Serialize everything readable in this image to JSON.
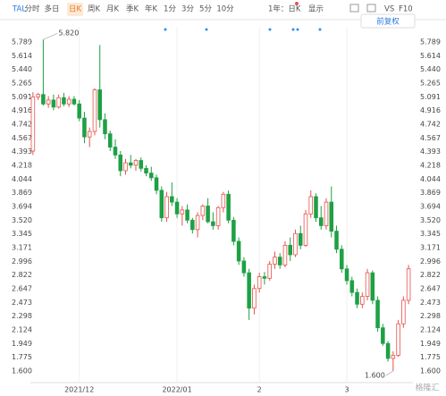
{
  "toolbar": {
    "symbol": "TAL",
    "tabs": [
      "分时",
      "多日",
      "日K",
      "周K",
      "月K",
      "季K",
      "年K",
      "1分",
      "3分",
      "5分",
      "10分"
    ],
    "range": "1年：日K",
    "display": "显示",
    "vs": "VS",
    "f10": "F10",
    "adjust": "前复权"
  },
  "watermark": "格隆汇",
  "chart_data": {
    "type": "candlestick",
    "categories": [
      null,
      null,
      null,
      null,
      null,
      null,
      null,
      null,
      null,
      "2021/12",
      null,
      null,
      null,
      null,
      null,
      null,
      null,
      null,
      null,
      null,
      null,
      null,
      null,
      null,
      null,
      null,
      null,
      null,
      "2022/01",
      null,
      null,
      null,
      null,
      null,
      null,
      null,
      null,
      null,
      null,
      null,
      null,
      null,
      null,
      null,
      "2",
      null,
      null,
      null,
      null,
      null,
      null,
      null,
      null,
      null,
      null,
      null,
      null,
      null,
      null,
      null,
      null,
      "3",
      null,
      null,
      null,
      null,
      null,
      null,
      null,
      null,
      null,
      null,
      null,
      null
    ],
    "open": [
      4.4,
      5.09,
      5.12,
      5.0,
      5.05,
      4.96,
      5.08,
      5.0,
      5.06,
      5.0,
      4.82,
      4.58,
      4.65,
      5.18,
      4.8,
      4.62,
      4.45,
      4.35,
      4.15,
      4.25,
      4.22,
      4.28,
      4.18,
      4.12,
      4.06,
      3.9,
      3.55,
      3.82,
      3.75,
      3.6,
      3.65,
      3.52,
      3.4,
      3.58,
      3.7,
      3.5,
      3.45,
      3.68,
      3.85,
      3.52,
      3.25,
      3.0,
      2.85,
      2.4,
      2.65,
      2.8,
      2.78,
      2.96,
      3.05,
      2.95,
      3.2,
      3.08,
      3.35,
      3.2,
      3.6,
      3.82,
      3.55,
      3.45,
      3.75,
      3.38,
      3.15,
      2.9,
      2.75,
      2.6,
      2.45,
      2.55,
      2.85,
      2.5,
      2.15,
      1.95,
      1.76,
      1.8,
      2.2,
      2.5
    ],
    "high": [
      5.15,
      5.14,
      5.82,
      5.1,
      5.12,
      5.12,
      5.14,
      5.1,
      5.1,
      5.05,
      4.9,
      4.7,
      5.2,
      5.75,
      4.88,
      4.66,
      4.55,
      4.4,
      4.3,
      4.35,
      4.3,
      4.32,
      4.22,
      4.2,
      4.1,
      3.95,
      3.88,
      4.0,
      3.8,
      3.7,
      3.72,
      3.55,
      3.62,
      3.72,
      3.8,
      3.62,
      3.7,
      3.88,
      3.9,
      3.56,
      3.3,
      3.05,
      2.9,
      2.7,
      2.85,
      2.86,
      3.0,
      3.12,
      3.1,
      3.25,
      3.3,
      3.4,
      3.45,
      3.65,
      3.9,
      3.86,
      3.7,
      3.8,
      3.95,
      3.45,
      3.2,
      2.95,
      2.8,
      2.65,
      2.6,
      2.9,
      2.88,
      2.55,
      2.2,
      1.98,
      1.85,
      2.25,
      2.55,
      2.95
    ],
    "low": [
      4.35,
      5.05,
      4.98,
      4.95,
      4.92,
      4.94,
      4.97,
      4.96,
      4.98,
      4.78,
      4.5,
      4.45,
      4.6,
      4.7,
      4.55,
      4.4,
      4.3,
      4.08,
      4.1,
      4.18,
      4.15,
      4.14,
      4.08,
      4.02,
      3.85,
      3.5,
      3.5,
      3.7,
      3.55,
      3.45,
      3.48,
      3.35,
      3.3,
      3.52,
      3.48,
      3.4,
      3.4,
      3.62,
      3.48,
      3.2,
      2.95,
      2.8,
      2.25,
      2.32,
      2.6,
      2.7,
      2.75,
      2.9,
      2.9,
      2.92,
      3.0,
      3.05,
      3.15,
      3.18,
      3.55,
      3.5,
      3.4,
      3.4,
      3.3,
      3.1,
      2.85,
      2.7,
      2.55,
      2.4,
      2.4,
      2.5,
      2.45,
      2.1,
      1.92,
      1.72,
      1.6,
      1.78,
      2.15,
      2.45
    ],
    "close": [
      5.09,
      5.12,
      5.0,
      5.05,
      4.96,
      5.08,
      5.0,
      5.06,
      5.0,
      4.82,
      4.58,
      4.65,
      5.18,
      4.8,
      4.62,
      4.45,
      4.35,
      4.15,
      4.25,
      4.22,
      4.28,
      4.18,
      4.12,
      4.06,
      3.9,
      3.55,
      3.82,
      3.75,
      3.6,
      3.65,
      3.52,
      3.4,
      3.58,
      3.7,
      3.5,
      3.45,
      3.68,
      3.85,
      3.52,
      3.25,
      3.0,
      2.85,
      2.4,
      2.65,
      2.8,
      2.78,
      2.96,
      3.05,
      2.95,
      3.2,
      3.08,
      3.35,
      3.2,
      3.6,
      3.82,
      3.55,
      3.45,
      3.75,
      3.38,
      3.15,
      2.9,
      2.75,
      2.6,
      2.45,
      2.55,
      2.85,
      2.5,
      2.15,
      1.95,
      1.76,
      1.8,
      2.2,
      2.5,
      2.9
    ],
    "up_color": "#e5534b",
    "down_color": "#1ea044",
    "annotations": [
      {
        "text": "5.820",
        "value": 5.82
      },
      {
        "text": "1.600",
        "value": 1.6
      }
    ],
    "ylim": [
      1.452,
      5.982
    ],
    "yticks": [
      5.789,
      5.614,
      {
        "value": 5.44,
        "label": "5.440"
      },
      5.265,
      5.091,
      4.916,
      4.742,
      4.567,
      4.393,
      4.218,
      4.044,
      3.869,
      3.694,
      {
        "value": 3.52,
        "label": "3.520"
      },
      3.345,
      3.171,
      2.996,
      2.822,
      2.647,
      2.473,
      2.298,
      2.124,
      1.949,
      1.775,
      {
        "value": 1.6,
        "label": "1.600"
      }
    ]
  }
}
